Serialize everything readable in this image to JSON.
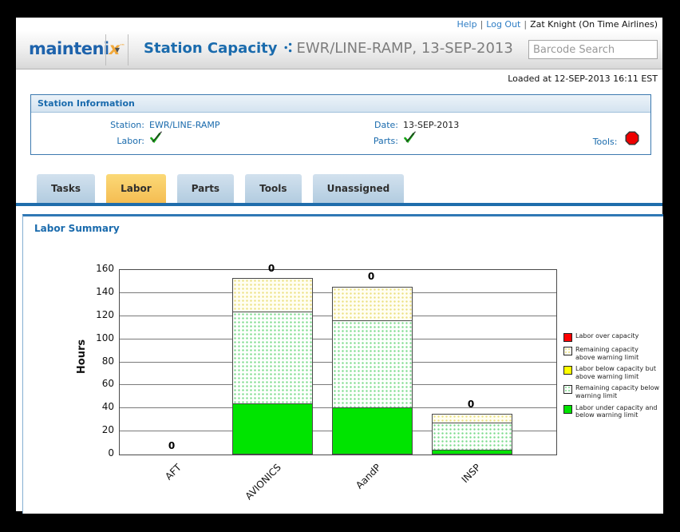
{
  "topbar": {
    "help": "Help",
    "logout": "Log Out",
    "user": "Zat Knight (On Time Airlines)",
    "sep": "|"
  },
  "header": {
    "logo_main": "mainteni",
    "logo_x": "x",
    "logo_tm": "TM",
    "dropdown_glyph": "▼",
    "title": "Station Capacity",
    "subtitle": "EWR/LINE-RAMP, 13-SEP-2013",
    "barcode_placeholder": "Barcode Search"
  },
  "loaded_text": "Loaded at 12-SEP-2013 16:11 EST",
  "station_info": {
    "title": "Station Information",
    "station_label": "Station:",
    "station_value": "EWR/LINE-RAMP",
    "date_label": "Date:",
    "date_value": "13-SEP-2013",
    "labor_label": "Labor:",
    "labor_status": "ok-check",
    "parts_label": "Parts:",
    "parts_status": "ok-check",
    "tools_label": "Tools:",
    "tools_status": "red-stop"
  },
  "tabs": [
    {
      "label": "Tasks",
      "active": false
    },
    {
      "label": "Labor",
      "active": true
    },
    {
      "label": "Parts",
      "active": false
    },
    {
      "label": "Tools",
      "active": false
    },
    {
      "label": "Unassigned",
      "active": false
    }
  ],
  "panel": {
    "title": "Labor Summary"
  },
  "chart_data": {
    "type": "bar",
    "stacked": true,
    "title": "",
    "xlabel": "",
    "ylabel": "Hours",
    "ylim": [
      0,
      160
    ],
    "ytick_step": 20,
    "grid": true,
    "legend_position": "right",
    "categories": [
      "AFT",
      "AVIONICS",
      "AandP",
      "INSP"
    ],
    "series": [
      {
        "name": "Labor under capacity and below warning limit",
        "style": "solid-green",
        "color": "#00e400",
        "values": [
          0,
          44,
          41,
          4
        ]
      },
      {
        "name": "Remaining capacity below warning limit",
        "style": "green-dotted",
        "color": "#7cdb8c",
        "values": [
          0,
          80,
          76,
          24
        ]
      },
      {
        "name": "Remaining capacity above warning limit",
        "style": "cream-dotted",
        "color": "#ece080",
        "values": [
          0,
          30,
          30,
          8
        ]
      }
    ],
    "bar_top_labels": [
      "0",
      "0",
      "0",
      "0"
    ],
    "legend": [
      {
        "label": "Labor over capacity",
        "style": "solid-red",
        "color": "#ff0000"
      },
      {
        "label": "Remaining capacity above warning limit",
        "style": "cream-dotted",
        "color": "#ece080"
      },
      {
        "label": "Labor below capacity but above warning limit",
        "style": "solid-yellow",
        "color": "#ffff00"
      },
      {
        "label": "Remaining capacity below warning limit",
        "style": "green-dotted",
        "color": "#7cdb8c"
      },
      {
        "label": "Labor under capacity and below warning limit",
        "style": "solid-green",
        "color": "#00e400"
      }
    ]
  }
}
